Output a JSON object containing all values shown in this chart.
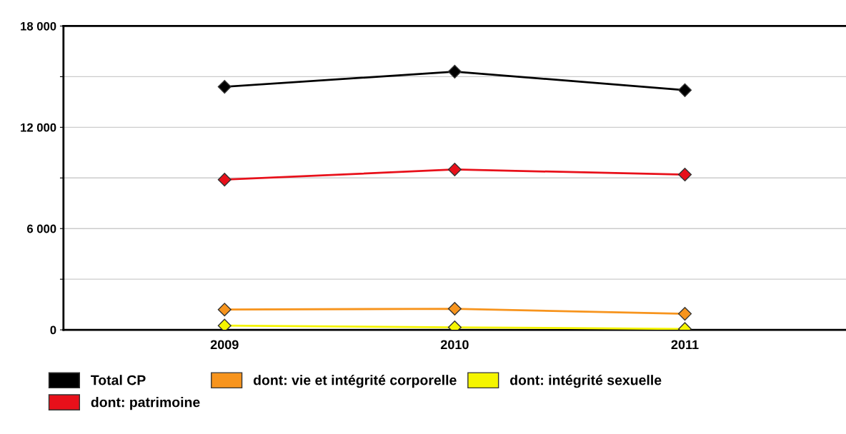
{
  "chart_data": {
    "type": "line",
    "categories": [
      "2009",
      "2010",
      "2011"
    ],
    "series": [
      {
        "name": "Total CP",
        "color": "#000000",
        "values": [
          14400,
          15300,
          14200
        ]
      },
      {
        "name": "dont: patrimoine",
        "color": "#e8101a",
        "values": [
          8900,
          9500,
          9200
        ]
      },
      {
        "name": "dont: vie et intégrité corporelle",
        "color": "#f7941d",
        "values": [
          1200,
          1250,
          950
        ]
      },
      {
        "name": "dont: intégrité sexuelle",
        "color": "#f5f500",
        "values": [
          250,
          150,
          50
        ]
      }
    ],
    "ylim": [
      0,
      18000
    ],
    "yticks": [
      0,
      {
        "value": 3000,
        "label": null
      },
      {
        "value": 6000,
        "label": "6 000"
      },
      {
        "value": 9000,
        "label": null
      },
      {
        "value": 12000,
        "label": "12 000"
      },
      {
        "value": 15000,
        "label": null
      },
      {
        "value": 18000,
        "label": "18 000"
      }
    ],
    "grid": "y",
    "legend": "bottom",
    "marker": "diamond",
    "line_style": "solid"
  }
}
